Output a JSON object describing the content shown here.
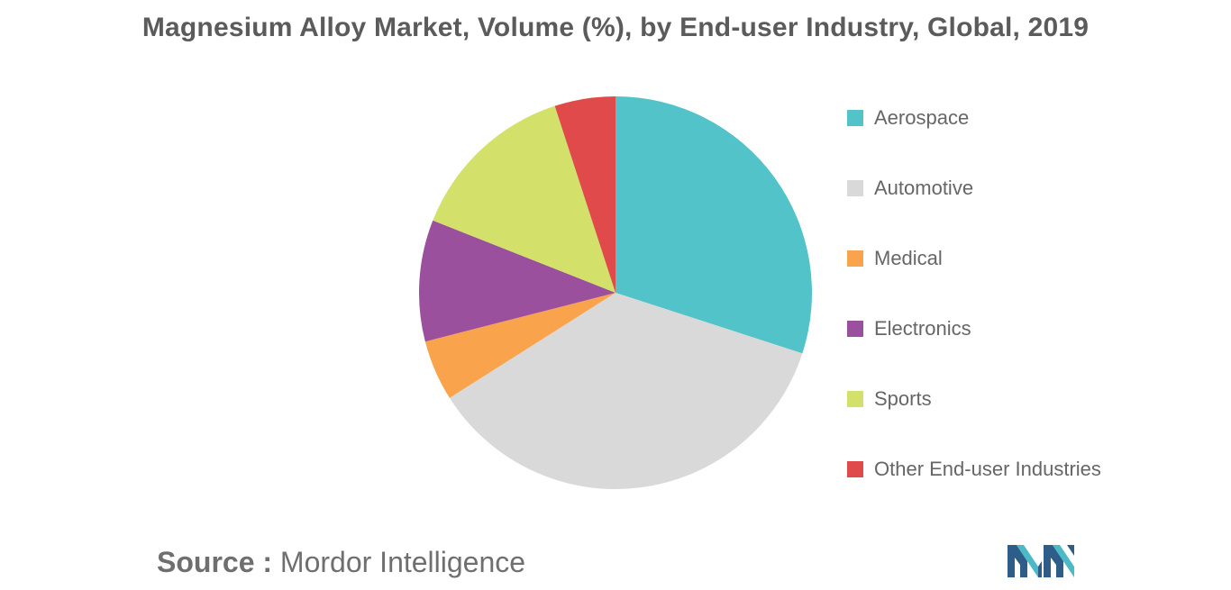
{
  "title": "Magnesium Alloy Market, Volume (%), by End-user Industry, Global, 2019",
  "source": {
    "label": "Source :",
    "text": "Mordor Intelligence"
  },
  "chart_data": {
    "type": "pie",
    "title": "Magnesium Alloy Market, Volume (%), by End-user Industry, Global, 2019",
    "legend_position": "right",
    "slices": [
      {
        "label": "Aerospace",
        "value": 30,
        "color": "#52c3c8"
      },
      {
        "label": "Automotive",
        "value": 36,
        "color": "#d9d9d9"
      },
      {
        "label": "Medical",
        "value": 5,
        "color": "#f9a44c"
      },
      {
        "label": "Electronics",
        "value": 10,
        "color": "#9b509e"
      },
      {
        "label": "Sports",
        "value": 14,
        "color": "#d3e16a"
      },
      {
        "label": "Other End-user Industries",
        "value": 5,
        "color": "#e04a4a"
      }
    ]
  },
  "legend": {
    "items": [
      {
        "label": "Aerospace",
        "color": "#52c3c8"
      },
      {
        "label": "Automotive",
        "color": "#d9d9d9"
      },
      {
        "label": "Medical",
        "color": "#f9a44c"
      },
      {
        "label": "Electronics",
        "color": "#9b509e"
      },
      {
        "label": "Sports",
        "color": "#d3e16a"
      },
      {
        "label": "Other End-user Industries",
        "color": "#e04a4a"
      }
    ]
  },
  "logo": {
    "name": "mordor-intelligence-logo"
  }
}
